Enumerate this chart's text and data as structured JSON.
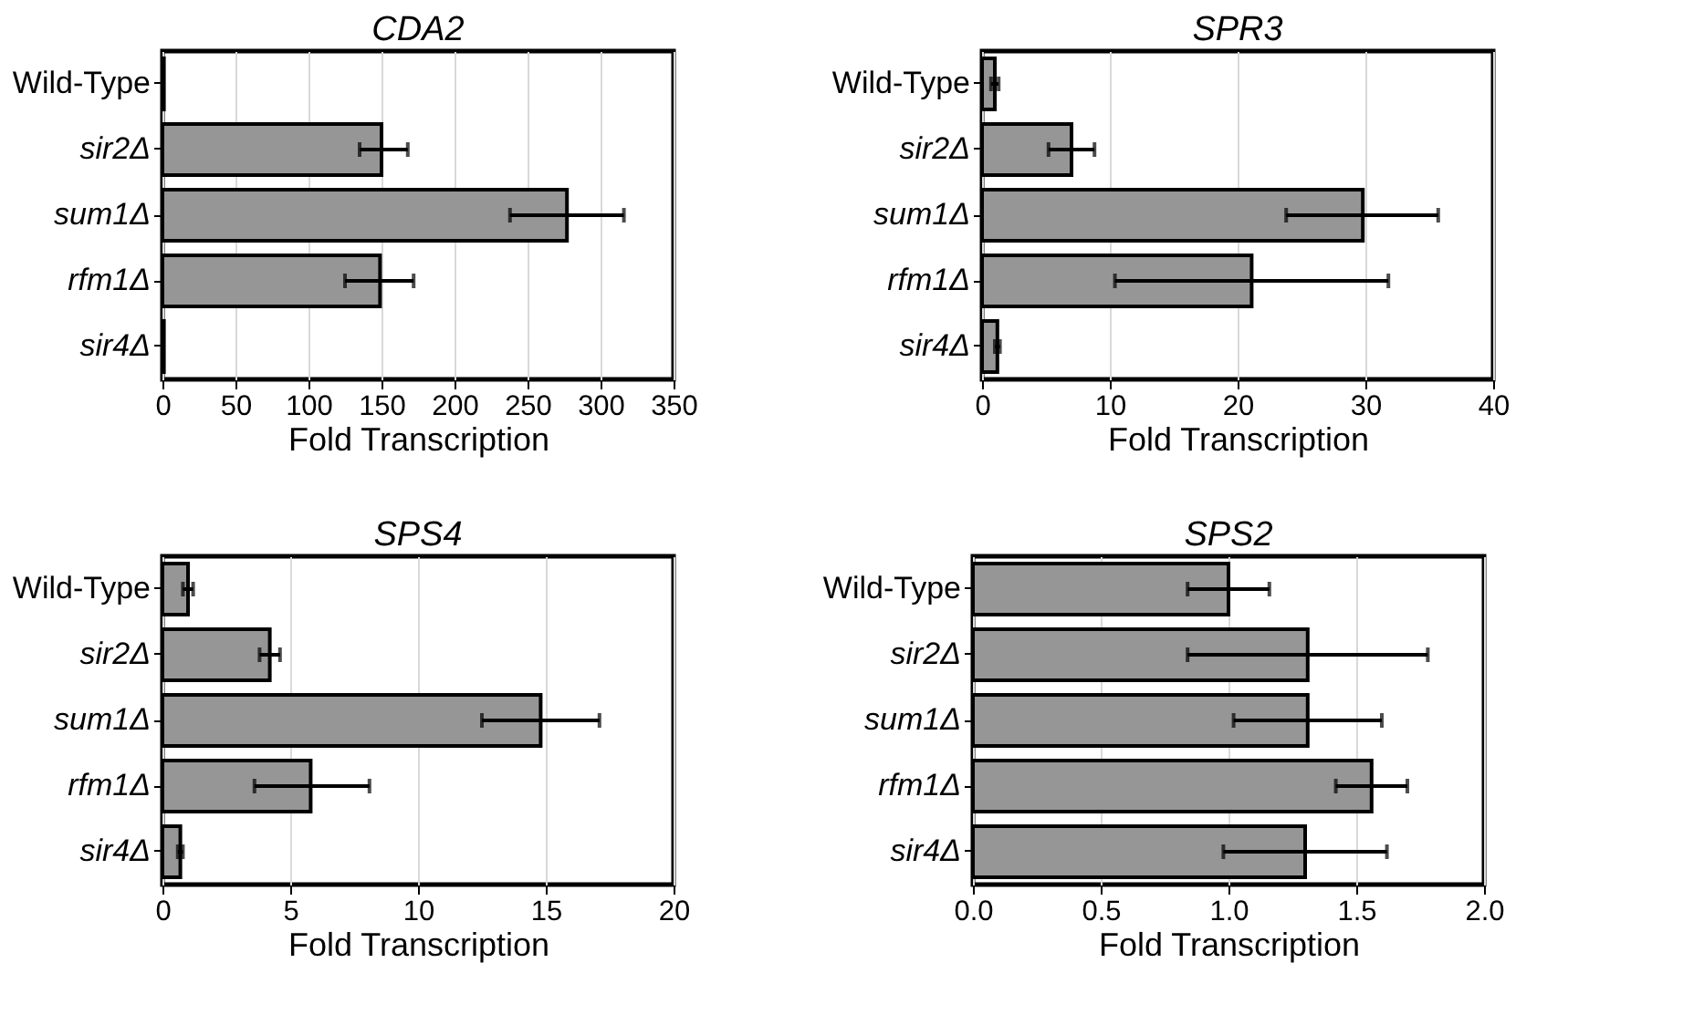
{
  "chart_data": [
    {
      "type": "bar",
      "orientation": "horizontal",
      "title": "CDA2",
      "xlabel": "Fold Transcription",
      "categories": [
        "Wild-Type",
        "sir2Δ",
        "sum1Δ",
        "rfm1Δ",
        "sir4Δ"
      ],
      "color": "#969696",
      "values": [
        1,
        150,
        277,
        149,
        1
      ],
      "errors": [
        null,
        [
          135,
          168
        ],
        [
          238,
          316
        ],
        [
          125,
          172
        ],
        null
      ],
      "xlim": [
        0,
        350
      ],
      "xticks": [
        0,
        50,
        100,
        150,
        200,
        250,
        300,
        350
      ],
      "grid": "x"
    },
    {
      "type": "bar",
      "orientation": "horizontal",
      "title": "SPR3",
      "xlabel": "Fold Transcription",
      "categories": [
        "Wild-Type",
        "sir2Δ",
        "sum1Δ",
        "rfm1Δ",
        "sir4Δ"
      ],
      "color": "#969696",
      "values": [
        1,
        7,
        29.8,
        21.1,
        1.2
      ],
      "errors": [
        [
          0.7,
          1.3
        ],
        [
          5.2,
          8.8
        ],
        [
          23.8,
          35.7
        ],
        [
          10.4,
          31.8
        ],
        [
          1.0,
          1.4
        ]
      ],
      "xlim": [
        0,
        40
      ],
      "xticks": [
        0,
        10,
        20,
        30,
        40
      ],
      "grid": "x"
    },
    {
      "type": "bar",
      "orientation": "horizontal",
      "title": "SPS4",
      "xlabel": "Fold Transcription",
      "categories": [
        "Wild-Type",
        "sir2Δ",
        "sum1Δ",
        "rfm1Δ",
        "sir4Δ"
      ],
      "color": "#969696",
      "values": [
        1,
        4.2,
        14.8,
        5.8,
        0.7
      ],
      "errors": [
        [
          0.8,
          1.2
        ],
        [
          3.8,
          4.6
        ],
        [
          12.5,
          17.1
        ],
        [
          3.6,
          8.1
        ],
        [
          0.6,
          0.8
        ]
      ],
      "xlim": [
        0,
        20
      ],
      "xticks": [
        0,
        5,
        10,
        15,
        20
      ],
      "grid": "x"
    },
    {
      "type": "bar",
      "orientation": "horizontal",
      "title": "SPS2",
      "xlabel": "Fold Transcription",
      "categories": [
        "Wild-Type",
        "sir2Δ",
        "sum1Δ",
        "rfm1Δ",
        "sir4Δ"
      ],
      "color": "#969696",
      "values": [
        1.0,
        1.31,
        1.31,
        1.56,
        1.3
      ],
      "errors": [
        [
          0.84,
          1.16
        ],
        [
          0.84,
          1.78
        ],
        [
          1.02,
          1.6
        ],
        [
          1.42,
          1.7
        ],
        [
          0.98,
          1.62
        ]
      ],
      "xlim": [
        0,
        2
      ],
      "xticks": [
        {
          "value": 0,
          "label": "0.0"
        },
        {
          "value": 0.5,
          "label": "0.5"
        },
        {
          "value": 1,
          "label": "1.0"
        },
        {
          "value": 1.5,
          "label": "1.5"
        },
        {
          "value": 2,
          "label": "2.0"
        }
      ],
      "grid": "x"
    }
  ]
}
